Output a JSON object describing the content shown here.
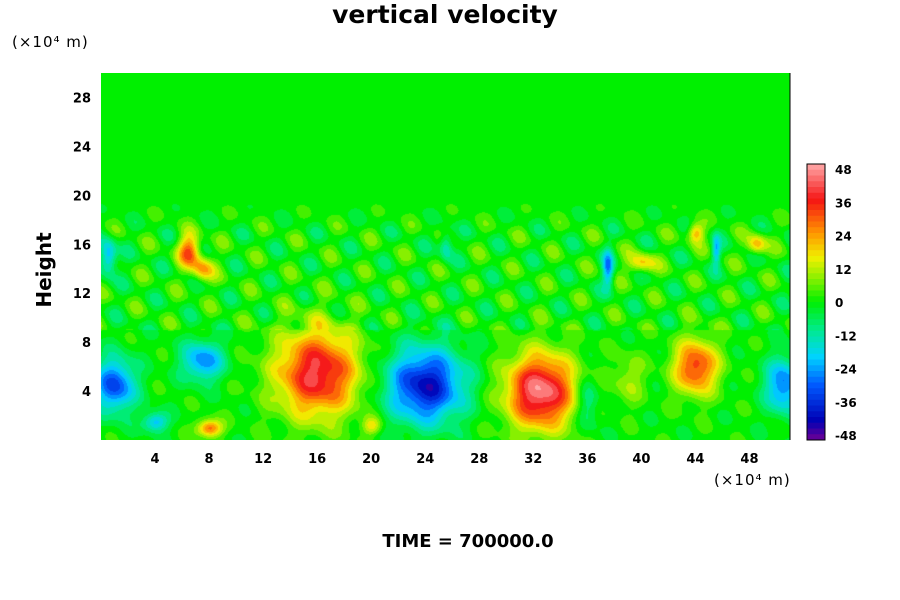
{
  "chart_data": {
    "type": "heatmap",
    "title": "vertical velocity",
    "xlabel": "",
    "ylabel": "Height",
    "x_unit": "(×10⁴ m)",
    "y_unit": "(×10⁴ m)",
    "xlim": [
      0,
      51
    ],
    "ylim": [
      0,
      30
    ],
    "x_ticks": [
      4,
      8,
      12,
      16,
      20,
      24,
      28,
      32,
      36,
      40,
      44,
      48
    ],
    "y_ticks": [
      4,
      8,
      12,
      16,
      20,
      24,
      28
    ],
    "colorbar": {
      "ticks": [
        48,
        36,
        24,
        12,
        0,
        -12,
        -24,
        -36,
        -48
      ],
      "range": [
        -48,
        48
      ]
    },
    "footer": "TIME = 700000.0",
    "features": [
      {
        "x": 16,
        "y": 5.5,
        "value": 40,
        "sx": 3.0,
        "sy": 3.5
      },
      {
        "x": 32.5,
        "y": 4,
        "value": 46,
        "sx": 2.5,
        "sy": 3.0
      },
      {
        "x": 44,
        "y": 6,
        "value": 34,
        "sx": 1.6,
        "sy": 2.2
      },
      {
        "x": 24,
        "y": 4.5,
        "value": -40,
        "sx": 2.8,
        "sy": 3.0
      },
      {
        "x": 1,
        "y": 4.5,
        "value": -32,
        "sx": 1.5,
        "sy": 2.2
      },
      {
        "x": 50.5,
        "y": 4.5,
        "value": -28,
        "sx": 1.3,
        "sy": 2.2
      },
      {
        "x": 7.5,
        "y": 6.5,
        "value": -26,
        "sx": 1.5,
        "sy": 1.6
      },
      {
        "x": 6.5,
        "y": 15.5,
        "value": 30,
        "sx": 0.8,
        "sy": 1.3
      },
      {
        "x": 7.5,
        "y": 14,
        "value": 22,
        "sx": 0.8,
        "sy": 1.0
      },
      {
        "x": 37.5,
        "y": 14,
        "value": -24,
        "sx": 0.4,
        "sy": 1.5
      },
      {
        "x": 45.5,
        "y": 15.5,
        "value": -20,
        "sx": 0.3,
        "sy": 1.2
      },
      {
        "x": 0.5,
        "y": 15,
        "value": -26,
        "sx": 0.6,
        "sy": 1.4
      },
      {
        "x": 25.5,
        "y": 16,
        "value": -16,
        "sx": 0.5,
        "sy": 1.2
      },
      {
        "x": 40,
        "y": 14.5,
        "value": 20,
        "sx": 1.0,
        "sy": 0.8
      },
      {
        "x": 44,
        "y": 17,
        "value": 22,
        "sx": 0.6,
        "sy": 0.8
      },
      {
        "x": 48.5,
        "y": 16,
        "value": 22,
        "sx": 0.7,
        "sy": 0.8
      },
      {
        "x": 8,
        "y": 1,
        "value": 30,
        "sx": 0.9,
        "sy": 0.7
      },
      {
        "x": 4,
        "y": 1.5,
        "value": -22,
        "sx": 0.9,
        "sy": 0.8
      },
      {
        "x": 20,
        "y": 1.2,
        "value": 16,
        "sx": 0.7,
        "sy": 0.7
      },
      {
        "x": 39,
        "y": 5,
        "value": 10,
        "sx": 1.2,
        "sy": 2.0
      },
      {
        "x": 36,
        "y": 3,
        "value": -14,
        "sx": 0.8,
        "sy": 2.0
      }
    ]
  }
}
